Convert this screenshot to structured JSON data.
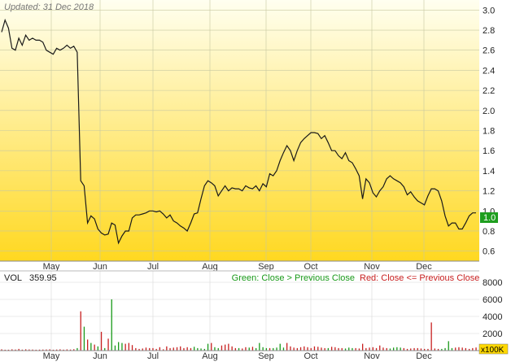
{
  "updated_label": "Updated: 31 Dec 2018",
  "price_badge": "1.0",
  "volume_unit_badge": "x100K",
  "colors": {
    "price_line": "#1a1a1a",
    "bg_top": "#fffff0",
    "bg_bottom": "#ffd820",
    "grid": "#c8c8a0",
    "badge": "#1e9e1e",
    "up_volume": "#1a9a1a",
    "down_volume": "#c82020"
  },
  "chart_data": [
    {
      "type": "line",
      "title": "",
      "ylim": [
        0.5,
        3.1
      ],
      "y_ticks": [
        "0.6",
        "0.8",
        "1.0",
        "1.2",
        "1.4",
        "1.6",
        "1.8",
        "2.0",
        "2.2",
        "2.4",
        "2.6",
        "2.8",
        "3.0"
      ],
      "x_labels": [
        "May",
        "Jun",
        "Jul",
        "Aug",
        "Sep",
        "Oct",
        "Nov",
        "Dec"
      ],
      "grid": true,
      "last_value": 1.0,
      "series": [
        {
          "values": [
            2.78,
            2.9,
            2.82,
            2.62,
            2.6,
            2.72,
            2.65,
            2.75,
            2.7,
            2.72,
            2.7,
            2.7,
            2.68,
            2.6,
            2.58,
            2.56,
            2.62,
            2.6,
            2.62,
            2.65,
            2.62,
            2.64,
            2.58,
            1.3,
            1.25,
            0.88,
            0.95,
            0.92,
            0.82,
            0.78,
            0.76,
            0.77,
            0.88,
            0.86,
            0.68,
            0.75,
            0.8,
            0.8,
            0.93,
            0.96,
            0.96,
            0.97,
            0.98,
            1.0,
            1.0,
            0.99,
            1.0,
            0.97,
            0.93,
            0.96,
            0.9,
            0.88,
            0.85,
            0.83,
            0.8,
            0.88,
            0.97,
            0.98,
            1.12,
            1.25,
            1.3,
            1.28,
            1.25,
            1.15,
            1.2,
            1.25,
            1.2,
            1.23,
            1.22,
            1.22,
            1.2,
            1.25,
            1.23,
            1.22,
            1.25,
            1.2,
            1.27,
            1.24,
            1.37,
            1.35,
            1.4,
            1.5,
            1.58,
            1.65,
            1.6,
            1.5,
            1.6,
            1.68,
            1.72,
            1.75,
            1.78,
            1.78,
            1.77,
            1.72,
            1.75,
            1.68,
            1.6,
            1.6,
            1.55,
            1.52,
            1.58,
            1.5,
            1.48,
            1.42,
            1.35,
            1.12,
            1.32,
            1.28,
            1.18,
            1.14,
            1.2,
            1.24,
            1.32,
            1.35,
            1.32,
            1.3,
            1.28,
            1.24,
            1.16,
            1.19,
            1.14,
            1.1,
            1.08,
            1.06,
            1.15,
            1.22,
            1.22,
            1.2,
            1.1,
            0.95,
            0.85,
            0.88,
            0.88,
            0.82,
            0.82,
            0.88,
            0.95,
            0.98,
            0.98
          ]
        }
      ]
    },
    {
      "type": "bar",
      "title": "VOL",
      "current_value": "359.95",
      "legend": {
        "up": "Green: Close > Previous Close",
        "down": "Red: Close <= Previous Close"
      },
      "unit": "x100K",
      "ylim": [
        0,
        8000
      ],
      "y_ticks": [
        "2000",
        "4000",
        "6000",
        "8000"
      ],
      "x_labels": [
        "May",
        "Jun",
        "Jul",
        "Aug",
        "Sep",
        "Oct",
        "Nov",
        "Dec"
      ],
      "grid": true,
      "values": [
        150,
        100,
        100,
        150,
        120,
        200,
        110,
        150,
        130,
        120,
        100,
        110,
        120,
        130,
        150,
        100,
        120,
        150,
        110,
        140,
        120,
        160,
        300,
        4600,
        2800,
        1300,
        900,
        700,
        500,
        2200,
        300,
        1400,
        6000,
        600,
        1000,
        900,
        800,
        900,
        650,
        300,
        200,
        250,
        350,
        300,
        300,
        200,
        400,
        150,
        500,
        300,
        350,
        400,
        500,
        300,
        400,
        300,
        450,
        300,
        250,
        200,
        800,
        900,
        400,
        300,
        600,
        700,
        800,
        500,
        300,
        300,
        250,
        400,
        350,
        450,
        300,
        900,
        400,
        300,
        300,
        300,
        350,
        800,
        350,
        900,
        500,
        350,
        300,
        400,
        500,
        400,
        300,
        500,
        450,
        350,
        300,
        300,
        450,
        400,
        300,
        300,
        250,
        350,
        300,
        300,
        250,
        800,
        300,
        350,
        400,
        300,
        600,
        350,
        300,
        250,
        350,
        400,
        350,
        300,
        200,
        250,
        300,
        300,
        250,
        200,
        200,
        3300,
        250,
        200,
        200,
        300,
        1100,
        300,
        350,
        400,
        350,
        300,
        200,
        300,
        360
      ],
      "directions": "ddddddddddddddddddddddudududududuuuudddddddddddddddddddduuuuuduudddddudduduuuuduuuuddddddddddddudddduuudddddddddduuuuddddddddddduuuu"
    }
  ]
}
